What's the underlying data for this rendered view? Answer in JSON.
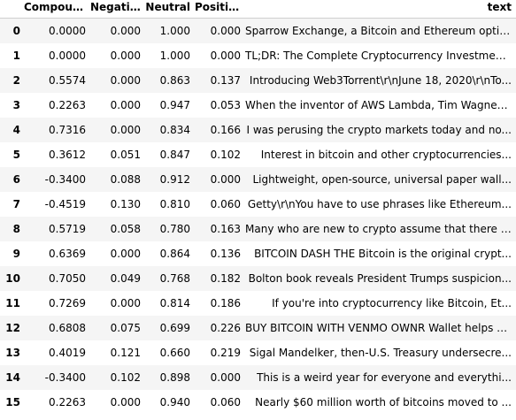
{
  "table": {
    "columns": [
      "",
      "Compound",
      "Negative",
      "Neutral",
      "Positive",
      "text"
    ],
    "rows": [
      {
        "index": "0",
        "compound": "0.0000",
        "negative": "0.000",
        "neutral": "1.000",
        "positive": "0.000",
        "text": "Sparrow Exchange, a Bitcoin and Ethereum optio..."
      },
      {
        "index": "1",
        "compound": "0.0000",
        "negative": "0.000",
        "neutral": "1.000",
        "positive": "0.000",
        "text": "TL;DR: The Complete Cryptocurrency Investment ..."
      },
      {
        "index": "2",
        "compound": "0.5574",
        "negative": "0.000",
        "neutral": "0.863",
        "positive": "0.137",
        "text": "Introducing Web3Torrent\\r\\nJune 18, 2020\\r\\nTo..."
      },
      {
        "index": "3",
        "compound": "0.2263",
        "negative": "0.000",
        "neutral": "0.947",
        "positive": "0.053",
        "text": "When the inventor of AWS Lambda, Tim Wagner, a..."
      },
      {
        "index": "4",
        "compound": "0.7316",
        "negative": "0.000",
        "neutral": "0.834",
        "positive": "0.166",
        "text": "I was perusing the crypto markets today and no..."
      },
      {
        "index": "5",
        "compound": "0.3612",
        "negative": "0.051",
        "neutral": "0.847",
        "positive": "0.102",
        "text": "Interest in bitcoin and other cryptocurrencies..."
      },
      {
        "index": "6",
        "compound": "-0.3400",
        "negative": "0.088",
        "neutral": "0.912",
        "positive": "0.000",
        "text": "Lightweight, open-source, universal paper wall..."
      },
      {
        "index": "7",
        "compound": "-0.4519",
        "negative": "0.130",
        "neutral": "0.810",
        "positive": "0.060",
        "text": "Getty\\r\\nYou have to use phrases like Ethereum..."
      },
      {
        "index": "8",
        "compound": "0.5719",
        "negative": "0.058",
        "neutral": "0.780",
        "positive": "0.163",
        "text": "Many who are new to crypto assume that there w..."
      },
      {
        "index": "9",
        "compound": "0.6369",
        "negative": "0.000",
        "neutral": "0.864",
        "positive": "0.136",
        "text": "BITCOIN DASH THE Bitcoin is the original crypt..."
      },
      {
        "index": "10",
        "compound": "0.7050",
        "negative": "0.049",
        "neutral": "0.768",
        "positive": "0.182",
        "text": "Bolton book reveals President Trumps suspicion..."
      },
      {
        "index": "11",
        "compound": "0.7269",
        "negative": "0.000",
        "neutral": "0.814",
        "positive": "0.186",
        "text": "If you're into cryptocurrency like Bitcoin, Et..."
      },
      {
        "index": "12",
        "compound": "0.6808",
        "negative": "0.075",
        "neutral": "0.699",
        "positive": "0.226",
        "text": "BUY BITCOIN WITH VENMO OWNR Wallet helps users..."
      },
      {
        "index": "13",
        "compound": "0.4019",
        "negative": "0.121",
        "neutral": "0.660",
        "positive": "0.219",
        "text": "Sigal Mandelker, then-U.S. Treasury undersecre..."
      },
      {
        "index": "14",
        "compound": "-0.3400",
        "negative": "0.102",
        "neutral": "0.898",
        "positive": "0.000",
        "text": "This is a weird year for everyone and everythi..."
      },
      {
        "index": "15",
        "compound": "0.2263",
        "negative": "0.000",
        "neutral": "0.940",
        "positive": "0.060",
        "text": "Nearly $60 million worth of bitcoins moved to ..."
      }
    ]
  }
}
